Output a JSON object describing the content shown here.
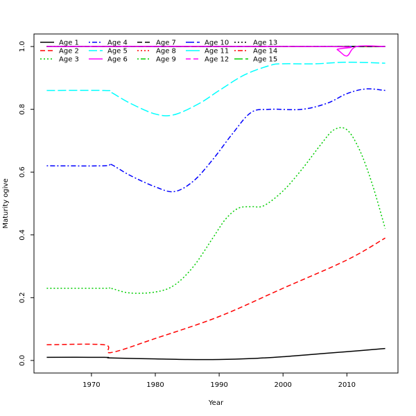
{
  "chart_data": {
    "type": "line",
    "title": "",
    "xlabel": "Year",
    "ylabel": "Maturity ogive",
    "xlim": [
      1961,
      2018
    ],
    "ylim": [
      -0.04,
      1.04
    ],
    "xticks": [
      1970,
      1980,
      1990,
      2000,
      2010
    ],
    "xtick_labels": [
      "1970",
      "1980",
      "1990",
      "2000",
      "2010"
    ],
    "yticks": [
      0.0,
      0.2,
      0.4,
      0.6,
      0.8,
      1.0
    ],
    "ytick_labels": [
      "0.0",
      "0.2",
      "0.4",
      "0.6",
      "0.8",
      "1.0"
    ],
    "grid": false,
    "legend_position": "top-left",
    "legend_columns": 5,
    "series": [
      {
        "name": "Age 1",
        "color": "#000000",
        "dash": "solid",
        "x": [
          1963,
          1972,
          1973,
          1980,
          1985,
          1990,
          1995,
          2000,
          2005,
          2010,
          2016
        ],
        "y": [
          0.01,
          0.01,
          0.008,
          0.005,
          0.003,
          0.003,
          0.006,
          0.012,
          0.02,
          0.028,
          0.038
        ]
      },
      {
        "name": "Age 2",
        "color": "#ff0000",
        "dash": "dashed",
        "x": [
          1963,
          1972,
          1973,
          1980,
          1990,
          2000,
          2010,
          2016
        ],
        "y": [
          0.05,
          0.05,
          0.025,
          0.07,
          0.14,
          0.23,
          0.32,
          0.39
        ]
      },
      {
        "name": "Age 3",
        "color": "#00cd00",
        "dash": "dotted",
        "x": [
          1963,
          1972,
          1973,
          1976,
          1980,
          1983,
          1986,
          1989,
          1991,
          1993,
          1995,
          1997,
          2000,
          2003,
          2006,
          2008,
          2010,
          2012,
          2014,
          2016
        ],
        "y": [
          0.23,
          0.23,
          0.23,
          0.215,
          0.218,
          0.24,
          0.3,
          0.39,
          0.45,
          0.485,
          0.49,
          0.493,
          0.54,
          0.61,
          0.69,
          0.735,
          0.735,
          0.67,
          0.56,
          0.42
        ]
      },
      {
        "name": "Age 4",
        "color": "#0000ff",
        "dash": "dashdot",
        "x": [
          1963,
          1972,
          1973,
          1976,
          1980,
          1983,
          1986,
          1989,
          1992,
          1995,
          1998,
          2003,
          2007,
          2010,
          2013,
          2016
        ],
        "y": [
          0.62,
          0.62,
          0.625,
          0.59,
          0.553,
          0.538,
          0.572,
          0.64,
          0.72,
          0.79,
          0.8,
          0.8,
          0.82,
          0.85,
          0.865,
          0.86
        ]
      },
      {
        "name": "Age 5",
        "color": "#00ffff",
        "dash": "longdash",
        "x": [
          1963,
          1972,
          1973,
          1976,
          1980,
          1983,
          1987,
          1990,
          1994,
          1998,
          2000,
          2005,
          2010,
          2016
        ],
        "y": [
          0.86,
          0.86,
          0.855,
          0.82,
          0.785,
          0.783,
          0.82,
          0.86,
          0.91,
          0.94,
          0.945,
          0.945,
          0.95,
          0.947
        ]
      },
      {
        "name": "Age 6",
        "color": "#ff00ff",
        "dash": "solid",
        "x": [
          1963,
          2007,
          2008.5,
          2010,
          2011.5,
          2016
        ],
        "y": [
          1.0,
          1.0,
          0.99,
          0.97,
          1.0,
          1.0
        ]
      },
      {
        "name": "Age 7",
        "color": "#000000",
        "dash": "dashed",
        "x": [
          1963,
          2016
        ],
        "y": [
          1.0,
          1.0
        ]
      },
      {
        "name": "Age 8",
        "color": "#ff0000",
        "dash": "dotted",
        "x": [
          1963,
          2016
        ],
        "y": [
          1.0,
          1.0
        ]
      },
      {
        "name": "Age 9",
        "color": "#00cd00",
        "dash": "dashdot",
        "x": [
          1963,
          2016
        ],
        "y": [
          1.0,
          1.0
        ]
      },
      {
        "name": "Age 10",
        "color": "#0000ff",
        "dash": "longdash",
        "x": [
          1963,
          2016
        ],
        "y": [
          1.0,
          1.0
        ]
      },
      {
        "name": "Age 11",
        "color": "#00ffff",
        "dash": "solid",
        "x": [
          1963,
          2016
        ],
        "y": [
          1.0,
          1.0
        ]
      },
      {
        "name": "Age 12",
        "color": "#ff00ff",
        "dash": "dashed",
        "x": [
          1963,
          2016
        ],
        "y": [
          1.0,
          1.0
        ]
      },
      {
        "name": "Age 13",
        "color": "#000000",
        "dash": "dotted",
        "x": [
          1963,
          2016
        ],
        "y": [
          1.0,
          1.0
        ]
      },
      {
        "name": "Age 14",
        "color": "#ff0000",
        "dash": "dashdot",
        "x": [
          1963,
          2016
        ],
        "y": [
          1.0,
          1.0
        ]
      },
      {
        "name": "Age 15",
        "color": "#00cd00",
        "dash": "longdash",
        "x": [
          1963,
          2016
        ],
        "y": [
          1.0,
          1.0
        ]
      }
    ]
  }
}
